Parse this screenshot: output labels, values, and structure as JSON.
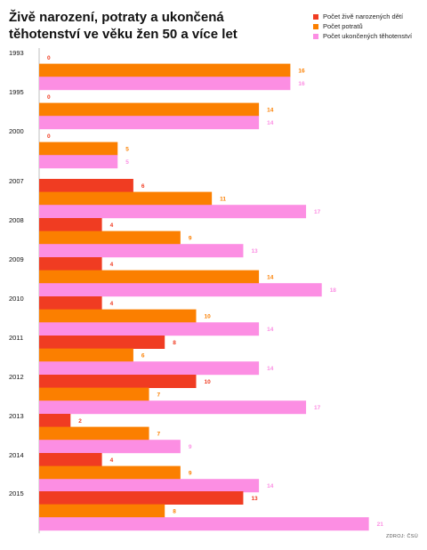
{
  "chart_data": {
    "type": "bar",
    "orientation": "horizontal",
    "title": "Živě narození, potraty a ukončená těhotenství ve věku žen 50 a více let",
    "categories": [
      "1993",
      "1995",
      "2000",
      "2007",
      "2008",
      "2009",
      "2010",
      "2011",
      "2012",
      "2013",
      "2014",
      "2015"
    ],
    "series": [
      {
        "name": "Počet živě narozených dětí",
        "color": "#f03c22",
        "values": [
          0,
          0,
          0,
          6,
          4,
          4,
          4,
          8,
          10,
          2,
          4,
          13
        ]
      },
      {
        "name": "Počet potratů",
        "color": "#fb7f00",
        "values": [
          16,
          14,
          5,
          11,
          9,
          14,
          10,
          6,
          7,
          7,
          9,
          8
        ]
      },
      {
        "name": "Počet ukončených těhotenství",
        "color": "#fc8ee3",
        "values": [
          16,
          14,
          5,
          17,
          13,
          18,
          14,
          14,
          17,
          9,
          14,
          21
        ]
      }
    ],
    "xlim": [
      0,
      22
    ],
    "grid": false,
    "legend_position": "top-right"
  },
  "source": "ZDROJ: ČSÚ"
}
